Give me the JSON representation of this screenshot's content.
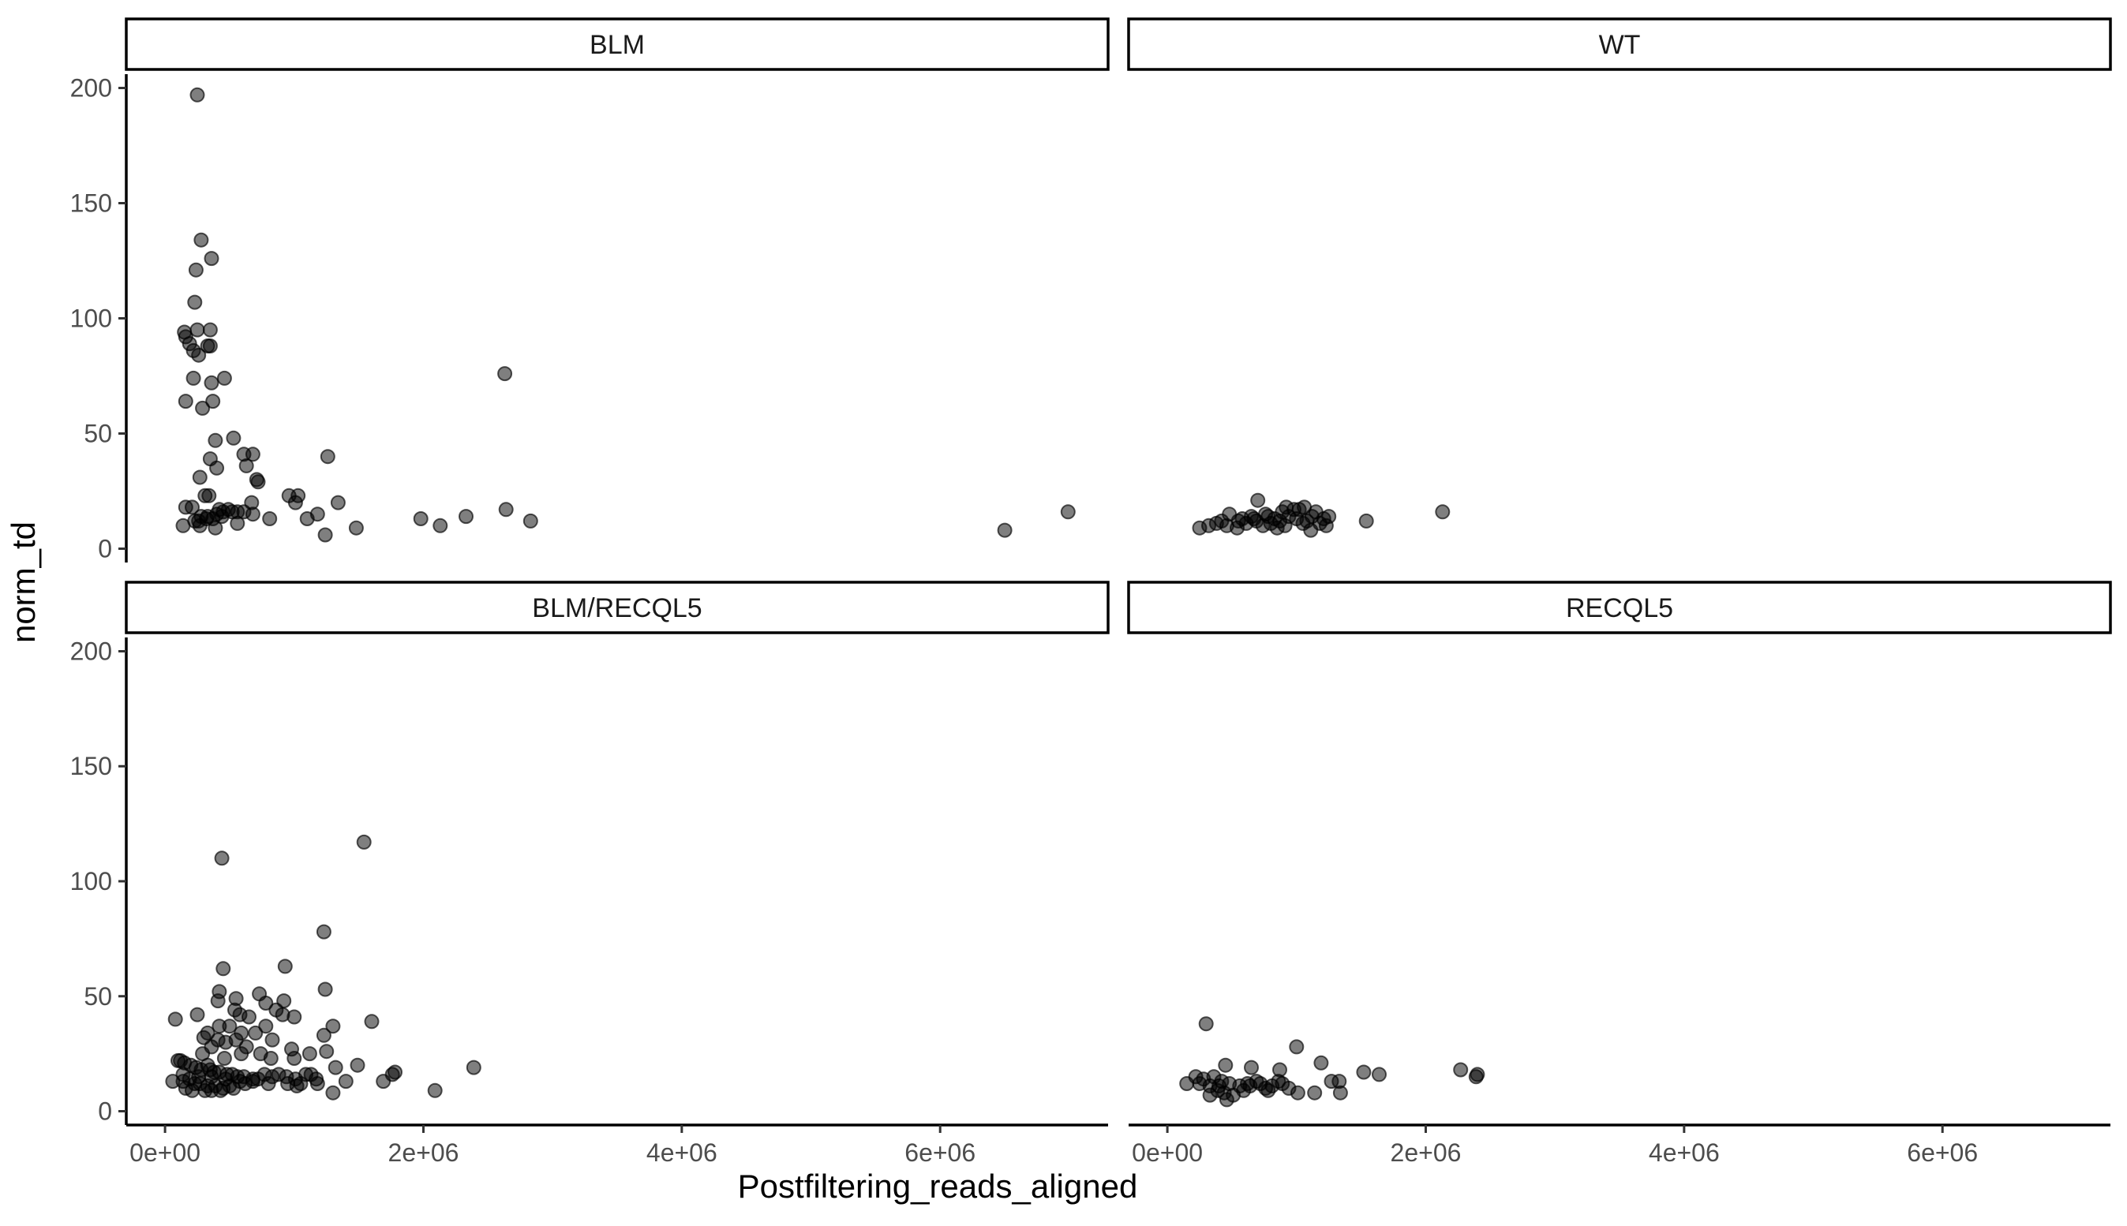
{
  "chart_data": {
    "type": "scatter",
    "xlabel": "Postfiltering_reads_aligned",
    "ylabel": "norm_td",
    "xlim": [
      -300000,
      7300000
    ],
    "ylim": [
      -6,
      206
    ],
    "x_ticks": [
      {
        "value": 0,
        "label": "0e+00"
      },
      {
        "value": 2000000,
        "label": "2e+06"
      },
      {
        "value": 4000000,
        "label": "4e+06"
      },
      {
        "value": 6000000,
        "label": "6e+06"
      }
    ],
    "y_ticks": [
      {
        "value": 0,
        "label": "0"
      },
      {
        "value": 50,
        "label": "50"
      },
      {
        "value": 100,
        "label": "100"
      },
      {
        "value": 150,
        "label": "150"
      },
      {
        "value": 200,
        "label": "200"
      }
    ],
    "panels": [
      {
        "name": "BLM",
        "points": [
          [
            250000,
            197
          ],
          [
            280000,
            134
          ],
          [
            360000,
            126
          ],
          [
            230000,
            107
          ],
          [
            240000,
            121
          ],
          [
            150000,
            94
          ],
          [
            160000,
            92
          ],
          [
            190000,
            89
          ],
          [
            250000,
            95
          ],
          [
            350000,
            95
          ],
          [
            350000,
            88
          ],
          [
            330000,
            88
          ],
          [
            220000,
            86
          ],
          [
            260000,
            84
          ],
          [
            460000,
            74
          ],
          [
            220000,
            74
          ],
          [
            360000,
            72
          ],
          [
            160000,
            64
          ],
          [
            370000,
            64
          ],
          [
            290000,
            61
          ],
          [
            530000,
            48
          ],
          [
            390000,
            47
          ],
          [
            610000,
            41
          ],
          [
            680000,
            41
          ],
          [
            1260000,
            40
          ],
          [
            350000,
            39
          ],
          [
            630000,
            36
          ],
          [
            400000,
            35
          ],
          [
            270000,
            31
          ],
          [
            710000,
            30
          ],
          [
            720000,
            29
          ],
          [
            1030000,
            23
          ],
          [
            310000,
            23
          ],
          [
            340000,
            23
          ],
          [
            960000,
            23
          ],
          [
            670000,
            20
          ],
          [
            1340000,
            20
          ],
          [
            1010000,
            20
          ],
          [
            160000,
            18
          ],
          [
            2640000,
            17
          ],
          [
            210000,
            18
          ],
          [
            420000,
            17
          ],
          [
            490000,
            17
          ],
          [
            520000,
            16
          ],
          [
            560000,
            16
          ],
          [
            450000,
            16
          ],
          [
            610000,
            16
          ],
          [
            400000,
            15
          ],
          [
            2330000,
            14
          ],
          [
            1180000,
            15
          ],
          [
            680000,
            15
          ],
          [
            280000,
            14
          ],
          [
            330000,
            14
          ],
          [
            440000,
            14
          ],
          [
            1980000,
            13
          ],
          [
            260000,
            12
          ],
          [
            230000,
            12
          ],
          [
            2830000,
            12
          ],
          [
            1100000,
            13
          ],
          [
            810000,
            13
          ],
          [
            370000,
            13
          ],
          [
            320000,
            13
          ],
          [
            560000,
            11
          ],
          [
            140000,
            10
          ],
          [
            270000,
            10
          ],
          [
            2130000,
            10
          ],
          [
            1480000,
            9
          ],
          [
            390000,
            9
          ],
          [
            6500000,
            8
          ],
          [
            1240000,
            6
          ],
          [
            6990000,
            16
          ],
          [
            2630000,
            76
          ]
        ]
      },
      {
        "name": "WT",
        "points": [
          [
            2130000,
            16
          ],
          [
            700000,
            21
          ],
          [
            920000,
            18
          ],
          [
            1060000,
            18
          ],
          [
            980000,
            17
          ],
          [
            1020000,
            17
          ],
          [
            890000,
            16
          ],
          [
            1150000,
            16
          ],
          [
            1250000,
            14
          ],
          [
            1540000,
            12
          ],
          [
            420000,
            12
          ],
          [
            480000,
            15
          ],
          [
            580000,
            13
          ],
          [
            650000,
            14
          ],
          [
            760000,
            15
          ],
          [
            830000,
            13
          ],
          [
            870000,
            12
          ],
          [
            940000,
            14
          ],
          [
            1000000,
            13
          ],
          [
            1080000,
            12
          ],
          [
            1120000,
            14
          ],
          [
            1180000,
            11
          ],
          [
            1230000,
            10
          ],
          [
            250000,
            9
          ],
          [
            320000,
            10
          ],
          [
            380000,
            11
          ],
          [
            460000,
            10
          ],
          [
            540000,
            9
          ],
          [
            610000,
            11
          ],
          [
            690000,
            12
          ],
          [
            740000,
            10
          ],
          [
            800000,
            11
          ],
          [
            850000,
            9
          ],
          [
            910000,
            10
          ],
          [
            1050000,
            11
          ],
          [
            1110000,
            8
          ],
          [
            1210000,
            13
          ],
          [
            550000,
            12
          ],
          [
            670000,
            13
          ],
          [
            780000,
            14
          ]
        ]
      },
      {
        "name": "BLM/RECQL5",
        "points": [
          [
            1540000,
            117
          ],
          [
            440000,
            110
          ],
          [
            1230000,
            78
          ],
          [
            450000,
            62
          ],
          [
            930000,
            63
          ],
          [
            1240000,
            53
          ],
          [
            420000,
            52
          ],
          [
            730000,
            51
          ],
          [
            550000,
            49
          ],
          [
            920000,
            48
          ],
          [
            410000,
            48
          ],
          [
            780000,
            47
          ],
          [
            860000,
            44
          ],
          [
            540000,
            44
          ],
          [
            910000,
            42
          ],
          [
            580000,
            42
          ],
          [
            1000000,
            41
          ],
          [
            650000,
            41
          ],
          [
            80000,
            40
          ],
          [
            250000,
            42
          ],
          [
            1600000,
            39
          ],
          [
            420000,
            37
          ],
          [
            1300000,
            37
          ],
          [
            500000,
            37
          ],
          [
            780000,
            37
          ],
          [
            590000,
            34
          ],
          [
            330000,
            34
          ],
          [
            700000,
            34
          ],
          [
            300000,
            32
          ],
          [
            410000,
            31
          ],
          [
            470000,
            30
          ],
          [
            1230000,
            33
          ],
          [
            830000,
            31
          ],
          [
            550000,
            31
          ],
          [
            360000,
            28
          ],
          [
            630000,
            28
          ],
          [
            980000,
            27
          ],
          [
            1250000,
            26
          ],
          [
            1120000,
            25
          ],
          [
            590000,
            25
          ],
          [
            740000,
            25
          ],
          [
            290000,
            25
          ],
          [
            1000000,
            23
          ],
          [
            460000,
            23
          ],
          [
            2390000,
            19
          ],
          [
            1490000,
            20
          ],
          [
            1780000,
            17
          ],
          [
            1760000,
            16
          ],
          [
            1320000,
            19
          ],
          [
            820000,
            23
          ],
          [
            120000,
            22
          ],
          [
            100000,
            22
          ],
          [
            150000,
            21
          ],
          [
            200000,
            20
          ],
          [
            240000,
            19
          ],
          [
            280000,
            18
          ],
          [
            350000,
            18
          ],
          [
            380000,
            17
          ],
          [
            420000,
            17
          ],
          [
            480000,
            16
          ],
          [
            520000,
            16
          ],
          [
            560000,
            15
          ],
          [
            610000,
            15
          ],
          [
            680000,
            14
          ],
          [
            720000,
            14
          ],
          [
            770000,
            16
          ],
          [
            830000,
            15
          ],
          [
            880000,
            16
          ],
          [
            940000,
            15
          ],
          [
            1010000,
            14
          ],
          [
            1090000,
            16
          ],
          [
            1130000,
            16
          ],
          [
            1170000,
            14
          ],
          [
            1400000,
            13
          ],
          [
            1690000,
            13
          ],
          [
            60000,
            13
          ],
          [
            140000,
            13
          ],
          [
            190000,
            14
          ],
          [
            230000,
            12
          ],
          [
            270000,
            12
          ],
          [
            330000,
            11
          ],
          [
            390000,
            11
          ],
          [
            450000,
            10
          ],
          [
            500000,
            11
          ],
          [
            620000,
            12
          ],
          [
            950000,
            12
          ],
          [
            1020000,
            11
          ],
          [
            1180000,
            12
          ],
          [
            160000,
            10
          ],
          [
            210000,
            9
          ],
          [
            310000,
            9
          ],
          [
            360000,
            9
          ],
          [
            430000,
            9
          ],
          [
            530000,
            10
          ],
          [
            1300000,
            8
          ],
          [
            2090000,
            9
          ],
          [
            680000,
            13
          ],
          [
            800000,
            12
          ],
          [
            1050000,
            12
          ],
          [
            140000,
            16
          ],
          [
            360000,
            15
          ],
          [
            470000,
            14
          ],
          [
            580000,
            13
          ],
          [
            260000,
            15
          ],
          [
            330000,
            20
          ]
        ]
      },
      {
        "name": "RECQL5",
        "points": [
          [
            300000,
            38
          ],
          [
            1000000,
            28
          ],
          [
            2270000,
            18
          ],
          [
            2400000,
            16
          ],
          [
            2390000,
            15
          ],
          [
            1190000,
            21
          ],
          [
            1640000,
            16
          ],
          [
            1520000,
            17
          ],
          [
            450000,
            20
          ],
          [
            650000,
            19
          ],
          [
            870000,
            18
          ],
          [
            1270000,
            13
          ],
          [
            1330000,
            13
          ],
          [
            220000,
            15
          ],
          [
            280000,
            14
          ],
          [
            360000,
            15
          ],
          [
            420000,
            13
          ],
          [
            480000,
            12
          ],
          [
            560000,
            11
          ],
          [
            620000,
            12
          ],
          [
            690000,
            13
          ],
          [
            760000,
            10
          ],
          [
            810000,
            11
          ],
          [
            890000,
            12
          ],
          [
            940000,
            10
          ],
          [
            1140000,
            8
          ],
          [
            1340000,
            8
          ],
          [
            1010000,
            8
          ],
          [
            150000,
            12
          ],
          [
            330000,
            11
          ],
          [
            390000,
            9
          ],
          [
            440000,
            8
          ],
          [
            510000,
            7
          ],
          [
            590000,
            9
          ],
          [
            720000,
            12
          ],
          [
            780000,
            9
          ],
          [
            250000,
            12
          ],
          [
            330000,
            7
          ],
          [
            460000,
            5
          ],
          [
            860000,
            13
          ],
          [
            400000,
            11
          ],
          [
            640000,
            11
          ]
        ]
      }
    ]
  }
}
